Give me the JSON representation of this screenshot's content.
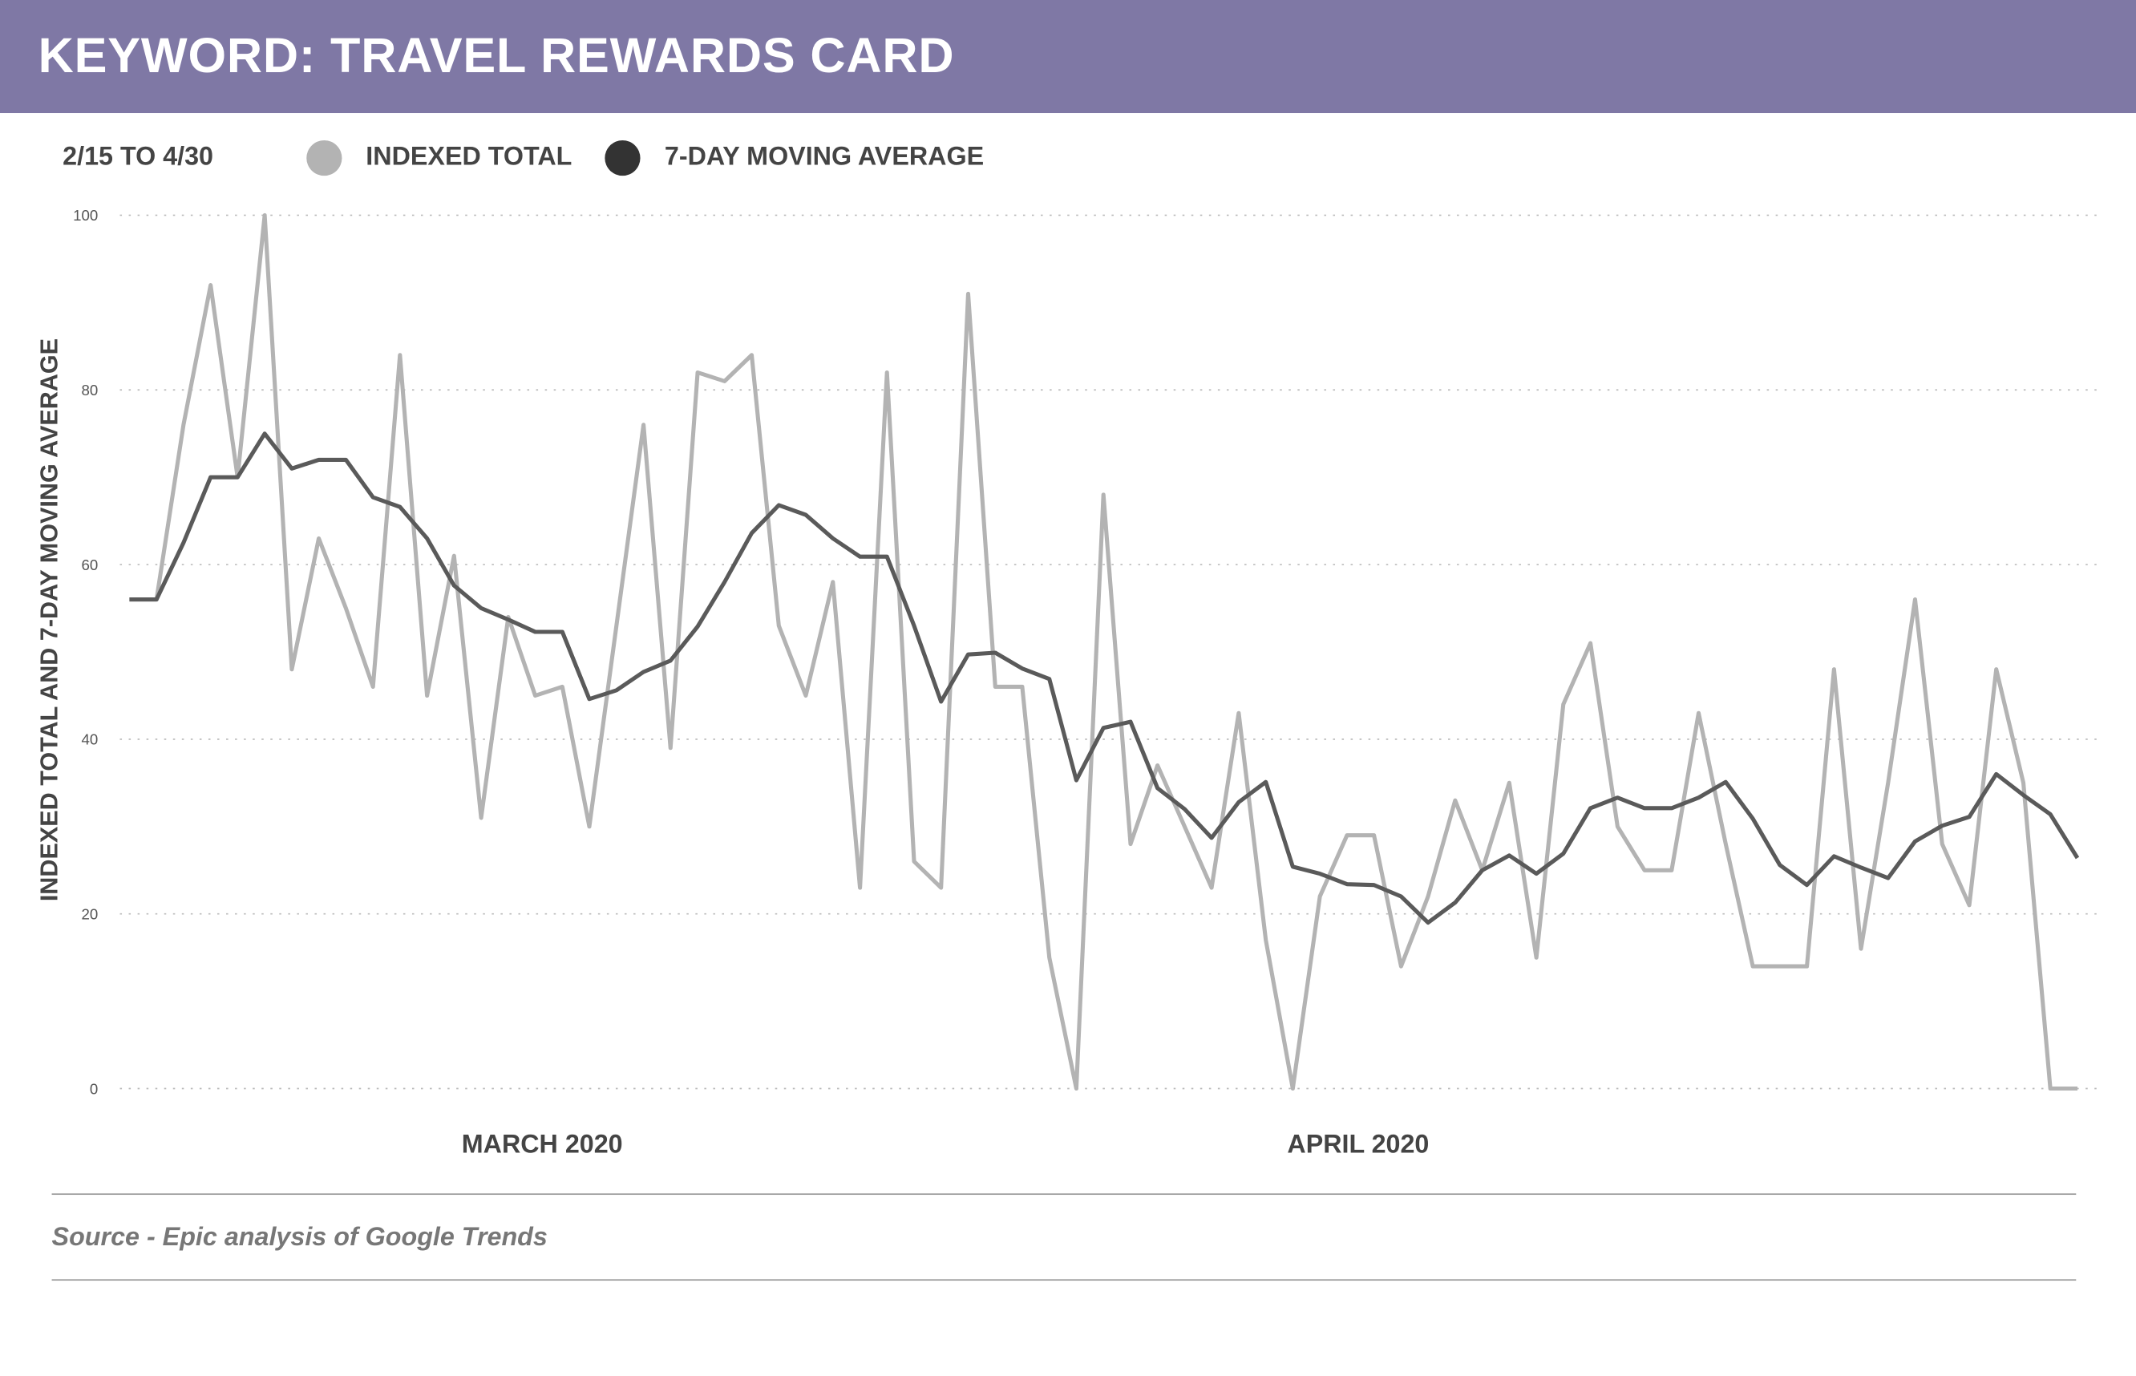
{
  "header": {
    "title": "KEYWORD: TRAVEL REWARDS CARD"
  },
  "legend": {
    "range": "2/15 TO 4/30",
    "items": [
      {
        "label": "INDEXED TOTAL",
        "color": "#b3b3b3"
      },
      {
        "label": "7-DAY MOVING AVERAGE",
        "color": "#333333"
      }
    ]
  },
  "source": "Source - Epic analysis of Google Trends",
  "chart_data": {
    "type": "line",
    "ylabel": "INDEXED TOTAL AND 7-DAY MOVING AVERAGE",
    "ylim": [
      0,
      100
    ],
    "yticks": [
      0,
      20,
      40,
      60,
      80,
      100
    ],
    "xtick_labels": [
      "MARCH 2020",
      "APRIL 2020"
    ],
    "grid": "horizontal dotted",
    "series": [
      {
        "name": "INDEXED TOTAL",
        "color": "#b3b3b3",
        "values": [
          56,
          56,
          76,
          92,
          70,
          100,
          48,
          63,
          55,
          46,
          84,
          45,
          61,
          31,
          54,
          45,
          46,
          30,
          53,
          76,
          39,
          82,
          81,
          84,
          53,
          45,
          58,
          23,
          82,
          26,
          23,
          91,
          46,
          46,
          15,
          0,
          68,
          28,
          37,
          30,
          23,
          43,
          17,
          0,
          22,
          29,
          29,
          14,
          22,
          33,
          25,
          35,
          15,
          44,
          51,
          30,
          25,
          25,
          43,
          28,
          14,
          14,
          14,
          48,
          16,
          35,
          56,
          28,
          21,
          48,
          35,
          0,
          0
        ]
      },
      {
        "name": "7-DAY MOVING AVERAGE",
        "color": "#5a5a5a",
        "values": [
          56,
          56,
          62.5,
          70,
          70,
          75,
          71,
          72,
          72,
          67.7,
          66.6,
          63,
          57.6,
          55,
          53.7,
          52.3,
          52.3,
          44.6,
          45.6,
          47.7,
          49,
          52.9,
          58,
          63.6,
          66.8,
          65.7,
          63,
          60.9,
          60.9,
          53,
          44.3,
          49.7,
          49.9,
          48.1,
          46.9,
          35.3,
          41.3,
          42,
          34.4,
          32,
          28.7,
          32.8,
          35.1,
          25.4,
          24.6,
          23.4,
          23.3,
          22,
          19,
          21.3,
          25,
          26.7,
          24.6,
          26.9,
          32.1,
          33.3,
          32.1,
          32.1,
          33.3,
          35.1,
          30.9,
          25.6,
          23.3,
          26.6,
          25.3,
          24.1,
          28.3,
          30.1,
          31.1,
          36,
          33.6,
          31.4,
          26.4
        ]
      }
    ]
  }
}
